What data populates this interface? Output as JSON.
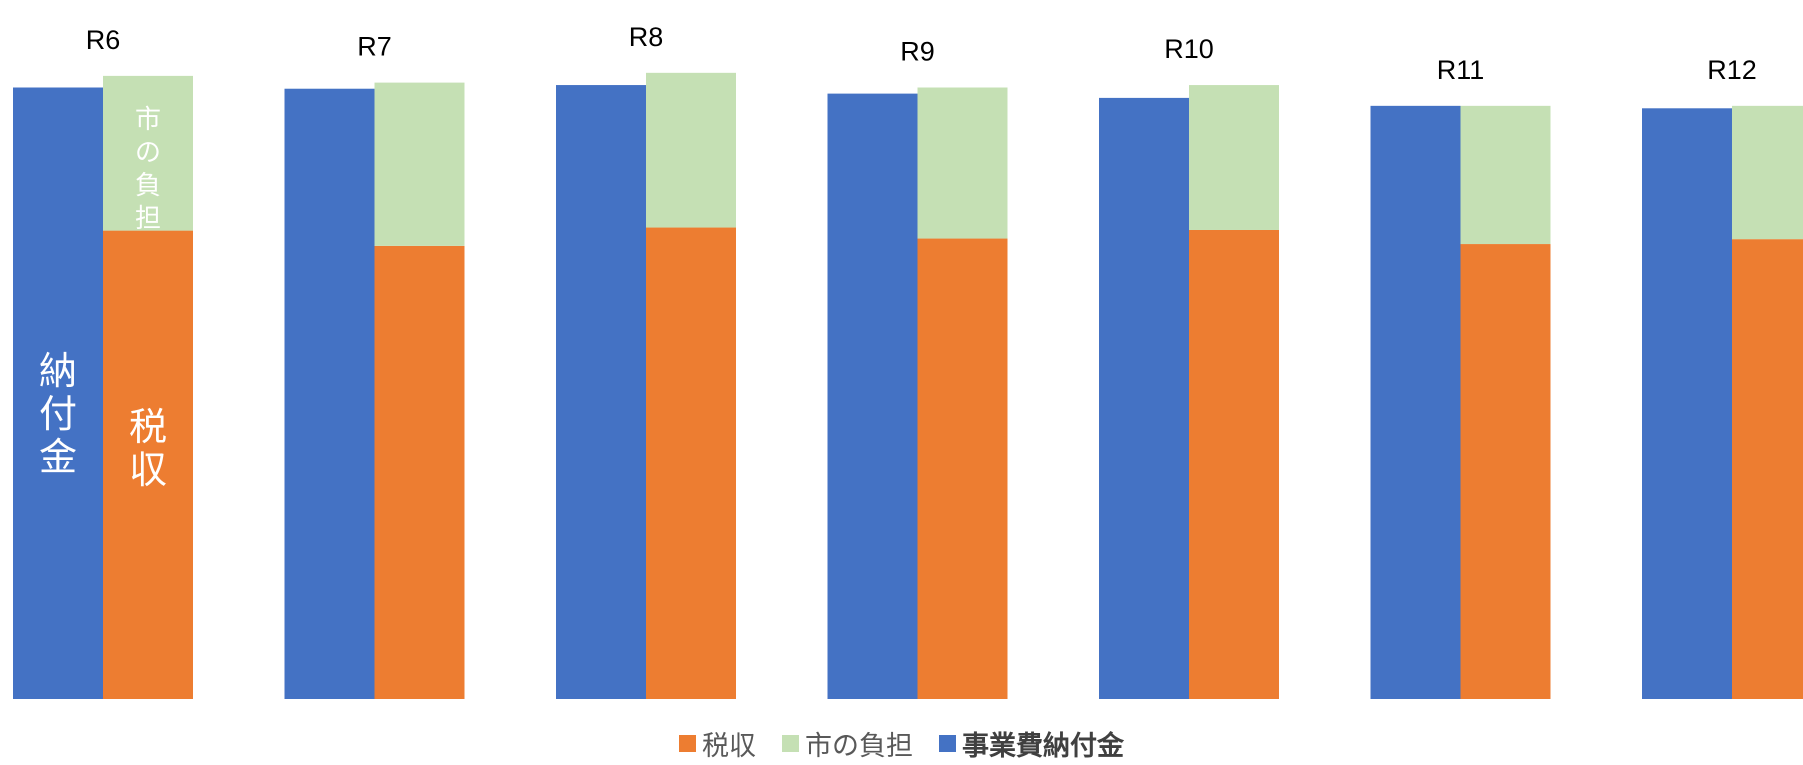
{
  "chart_data": {
    "type": "bar",
    "stacked_group": [
      "税収",
      "市の負担"
    ],
    "categories": [
      "R6",
      "R7",
      "R8",
      "R9",
      "R10",
      "R11",
      "R12"
    ],
    "series": [
      {
        "name": "事業費納付金",
        "color": "#4472c4",
        "values": [
          100.0,
          99.8,
          100.4,
          99.0,
          98.3,
          97.0,
          96.6
        ]
      },
      {
        "name": "税収",
        "color": "#ed7d31",
        "values": [
          76.6,
          74.1,
          77.1,
          75.3,
          76.7,
          74.4,
          75.2
        ]
      },
      {
        "name": "市の負担",
        "color": "#c5e0b4",
        "values": [
          25.3,
          26.7,
          25.3,
          24.7,
          23.7,
          22.6,
          21.8
        ]
      }
    ],
    "legend": {
      "position": "bottom",
      "order": [
        "税収",
        "市の負担",
        "事業費納付金"
      ]
    },
    "bar_annotations": {
      "blue_label": "納付金",
      "orange_label": "税収",
      "green_label": "市の負担"
    },
    "ylim": [
      0,
      100.5
    ],
    "grid": false
  }
}
